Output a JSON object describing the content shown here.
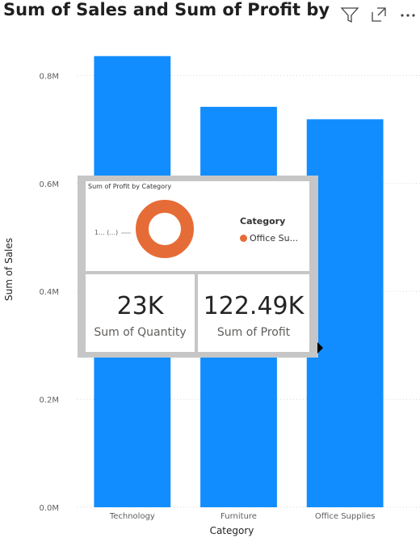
{
  "visual": {
    "title": "Sum of Sales and Sum of Profit by Cate"
  },
  "header_icons": [
    "filter-icon",
    "focus-mode-icon",
    "more-options-icon"
  ],
  "chart_data": {
    "type": "bar",
    "title": "Sum of Sales and Sum of Profit by Cate",
    "xlabel": "Category",
    "ylabel": "Sum of Sales",
    "categories": [
      "Technology",
      "Furniture",
      "Office Supplies"
    ],
    "series": [
      {
        "values": [
          836000,
          742000,
          719000
        ]
      }
    ],
    "ylim": [
      0,
      880000
    ],
    "yticks": [
      0,
      200000,
      400000,
      600000,
      800000
    ],
    "ytick_labels": [
      "0.0M",
      "0.2M",
      "0.4M",
      "0.6M",
      "0.8M"
    ],
    "grid": true,
    "bar_color": "#118dff"
  },
  "tooltip": {
    "donut": {
      "title": "Sum of Profit by Category",
      "leader_label": "1... (...)",
      "legend_title": "Category",
      "legend_item": "Office Su...",
      "color": "#e66c37"
    },
    "card_quantity": {
      "value": "23K",
      "label": "Sum of Quantity"
    },
    "card_profit": {
      "value": "122.49K",
      "label": "Sum of Profit"
    }
  }
}
